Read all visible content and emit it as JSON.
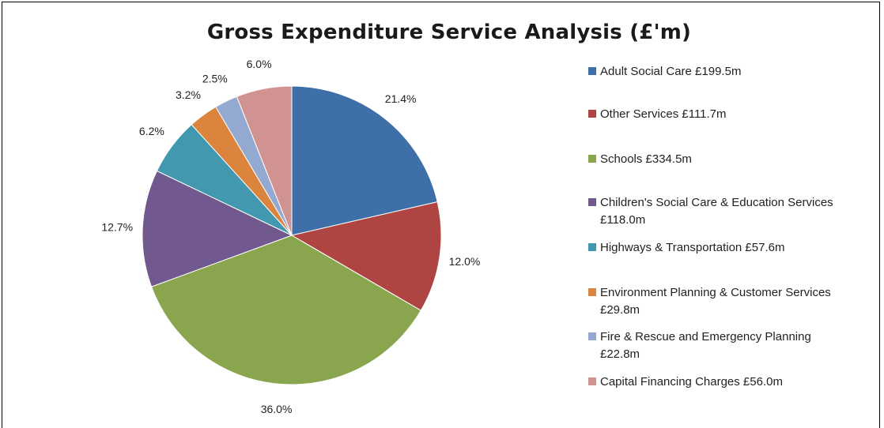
{
  "chart_data": {
    "type": "pie",
    "title": "Gross Expenditure Service Analysis (£'m)",
    "slices": [
      {
        "label": "Adult Social Care £199.5m",
        "value": 21.4,
        "value_label": "21.4%",
        "color": "#3F6FA8"
      },
      {
        "label": "Other Services  £111.7m",
        "value": 12.0,
        "value_label": "12.0%",
        "color": "#AE4543"
      },
      {
        "label": "Schools £334.5m",
        "value": 36.0,
        "value_label": "36.0%",
        "color": "#89A54E"
      },
      {
        "label": "Children's Social Care & Education Services £118.0m",
        "value": 12.7,
        "value_label": "12.7%",
        "color": "#71588F"
      },
      {
        "label": "Highways & Transportation £57.6m",
        "value": 6.2,
        "value_label": "6.2%",
        "color": "#4198AF"
      },
      {
        "label": "Environment Planning & Customer Services £29.8m",
        "value": 3.2,
        "value_label": "3.2%",
        "color": "#DB843D"
      },
      {
        "label": "Fire & Rescue and Emergency Planning £22.8m",
        "value": 2.5,
        "value_label": "2.5%",
        "color": "#93A9CF"
      },
      {
        "label": "Capital Financing Charges £56.0m",
        "value": 6.0,
        "value_label": "6.0%",
        "color": "#D19392"
      }
    ],
    "legend_position": "right",
    "start_angle": "top, clockwise"
  }
}
